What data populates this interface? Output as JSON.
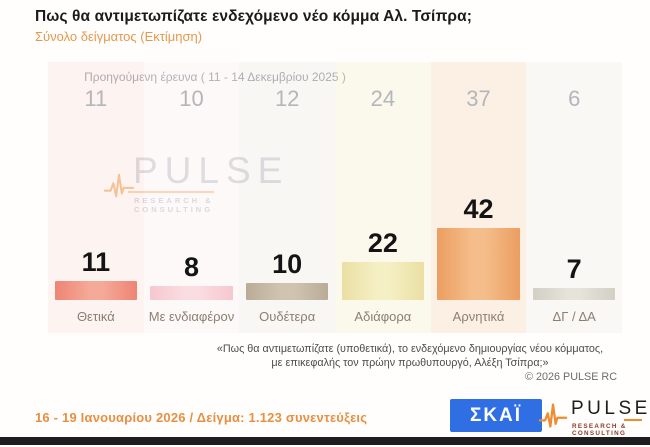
{
  "header": {
    "title": "Πως θα αντιμετωπίζατε ενδεχόμενο νέο κόμμα Αλ. Τσίπρα;",
    "subtitle": "Σύνολο δείγματος  (Εκτίμηση)"
  },
  "prev_survey_label": "Προηγούμενη έρευνα ( 11 - 14 Δεκεμβρίου 2025 )",
  "chart_data": {
    "type": "bar",
    "title": "Πως θα αντιμετωπίζατε ενδεχόμενο νέο κόμμα Αλ. Τσίπρα;",
    "subtitle": "Σύνολο δείγματος (Εκτίμηση)",
    "categories": [
      "Θετικά",
      "Με ενδιαφέρον",
      "Ουδέτερα",
      "Αδιάφορα",
      "Αρνητικά",
      "ΔΓ / ΔΑ"
    ],
    "series": [
      {
        "name": "Προηγούμενη έρευνα ( 11 - 14 Δεκεμβρίου 2025 )",
        "values": [
          11,
          10,
          12,
          24,
          37,
          6
        ]
      },
      {
        "name": "16 - 19 Ιανουαρίου 2026 (Εκτίμηση)",
        "values": [
          11,
          8,
          10,
          22,
          42,
          7
        ]
      }
    ],
    "ylim": [
      0,
      50
    ],
    "grid": false,
    "legend_position": "none",
    "bar_colors": [
      {
        "edge": "#ee8473",
        "center": "#f5a998"
      },
      {
        "edge": "#f6c7cf",
        "center": "#fadde1"
      },
      {
        "edge": "#b9ac97",
        "center": "#d0c4b1"
      },
      {
        "edge": "#eadfa3",
        "center": "#f5efc4"
      },
      {
        "edge": "#eb9e61",
        "center": "#f5bd8a"
      },
      {
        "edge": "#d2d0c5",
        "center": "#e5e3da"
      }
    ],
    "band_colors": [
      "rgba(238,132,115,0.09)",
      "rgba(246,199,207,0.09)",
      "rgba(185,172,151,0.09)",
      "rgba(234,223,163,0.18)",
      "rgba(235,158,97,0.15)",
      "rgba(210,208,197,0.13)"
    ]
  },
  "watermark": {
    "brand": "PULSE",
    "tagline": "RESEARCH & CONSULTING"
  },
  "footnote": {
    "line1": "«Πως θα αντιμετωπίζατε (υποθετικά), το ενδεχόμενο δημιουργίας νέου κόμματος,",
    "line2": "με επικεφαλής τον πρώην πρωθυπουργό, Αλέξη Τσίπρα;»",
    "copyright": "©  2026  PULSE RC"
  },
  "footer": {
    "fieldwork": "16 - 19 Ιανουαρίου 2026  /  Δείγμα:  1.123 συνεντεύξεις",
    "skai_logo_text": "ΣΚΑΪ",
    "pulse_logo_text": "PULSE",
    "pulse_logo_tagline": "RESEARCH & CONSULTING"
  },
  "colors": {
    "accent_orange": "#e8923f",
    "skai_blue": "#2f6fe3",
    "prev_text_gray": "#b3b6bb",
    "category_label": "#8d7e70",
    "value_label": "#141414"
  }
}
